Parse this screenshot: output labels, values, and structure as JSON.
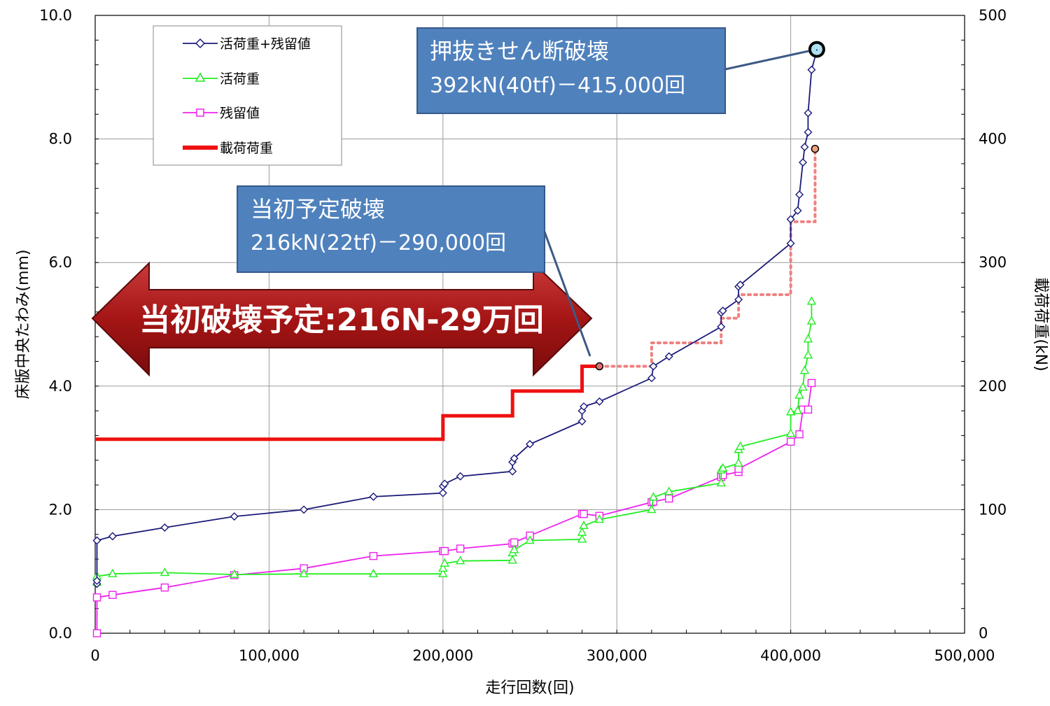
{
  "chart_data": {
    "type": "line",
    "xlabel": "走行回数(回)",
    "ylabel_left": "床版中央たわみ(mm)",
    "ylabel_right": "載荷荷重(kN)",
    "xlim": [
      0,
      500000
    ],
    "ylim_left": [
      0,
      10
    ],
    "ylim_right": [
      0,
      500
    ],
    "x_ticks": [
      0,
      100000,
      200000,
      300000,
      400000,
      500000
    ],
    "x_tick_labels": [
      "0",
      "100,000",
      "200,000",
      "300,000",
      "400,000",
      "500,000"
    ],
    "y_left_ticks": [
      0,
      2,
      4,
      6,
      8,
      10
    ],
    "y_left_tick_labels": [
      "0.0",
      "2.0",
      "4.0",
      "6.0",
      "8.0",
      "10.0"
    ],
    "y_right_ticks": [
      0,
      100,
      200,
      300,
      400,
      500
    ],
    "y_right_tick_labels": [
      "0",
      "100",
      "200",
      "300",
      "400",
      "500"
    ],
    "grid": true,
    "legend_position": "top-left",
    "series": [
      {
        "name": "活荷重+残留値",
        "axis": "left",
        "marker": "diamond",
        "color": "#1a1a7a",
        "x": [
          1000,
          1000,
          1000,
          10000,
          40000,
          80000,
          120000,
          160000,
          200000,
          200000,
          201000,
          210000,
          240000,
          240000,
          241000,
          250000,
          280000,
          280000,
          281000,
          290000,
          320000,
          321000,
          330000,
          360000,
          360000,
          361000,
          370000,
          370000,
          371000,
          400000,
          400000,
          404000,
          405000,
          407000,
          408000,
          410000,
          410000,
          412000,
          415000
        ],
        "y": [
          0.8,
          0.85,
          1.5,
          1.57,
          1.71,
          1.89,
          2.0,
          2.21,
          2.27,
          2.38,
          2.42,
          2.54,
          2.62,
          2.77,
          2.83,
          3.06,
          3.43,
          3.6,
          3.67,
          3.75,
          4.13,
          4.32,
          4.48,
          4.96,
          5.19,
          5.22,
          5.4,
          5.61,
          5.64,
          6.31,
          6.7,
          6.84,
          7.1,
          7.62,
          7.87,
          8.11,
          8.42,
          9.12,
          9.43
        ]
      },
      {
        "name": "活荷重",
        "axis": "left",
        "marker": "triangle",
        "color": "#22ee22",
        "x": [
          1000,
          1000,
          10000,
          40000,
          80000,
          120000,
          160000,
          200000,
          200000,
          201000,
          210000,
          240000,
          240000,
          241000,
          250000,
          280000,
          280000,
          281000,
          290000,
          320000,
          321000,
          330000,
          360000,
          360000,
          361000,
          370000,
          370000,
          371000,
          400000,
          400000,
          404000,
          405000,
          407000,
          408000,
          410000,
          410000,
          412000,
          412000
        ],
        "y": [
          0.82,
          0.92,
          0.96,
          0.98,
          0.95,
          0.96,
          0.96,
          0.96,
          1.05,
          1.13,
          1.17,
          1.18,
          1.3,
          1.35,
          1.5,
          1.52,
          1.63,
          1.74,
          1.84,
          2.0,
          2.2,
          2.29,
          2.43,
          2.64,
          2.67,
          2.75,
          2.97,
          3.02,
          3.23,
          3.58,
          3.6,
          3.85,
          3.98,
          4.25,
          4.5,
          4.76,
          5.05,
          5.37
        ]
      },
      {
        "name": "残留値",
        "axis": "left",
        "marker": "square",
        "color": "#ee22ee",
        "x": [
          1000,
          1000,
          10000,
          40000,
          80000,
          120000,
          160000,
          200000,
          201000,
          210000,
          240000,
          241000,
          250000,
          280000,
          281000,
          290000,
          320000,
          321000,
          330000,
          360000,
          361000,
          370000,
          370000,
          400000,
          405000,
          407000,
          410000,
          412000
        ],
        "y": [
          0.0,
          0.58,
          0.62,
          0.74,
          0.94,
          1.05,
          1.25,
          1.33,
          1.33,
          1.37,
          1.45,
          1.47,
          1.58,
          1.93,
          1.93,
          1.9,
          2.12,
          2.13,
          2.18,
          2.53,
          2.56,
          2.61,
          2.66,
          3.1,
          3.22,
          3.62,
          3.62,
          4.05
        ]
      },
      {
        "name": "載荷荷重",
        "axis": "right",
        "style": "step",
        "color": "#ee1111",
        "x": [
          0,
          200000,
          200000,
          240000,
          240000,
          280000,
          280000,
          290000
        ],
        "y": [
          157,
          157,
          176,
          176,
          196,
          196,
          216,
          216
        ]
      },
      {
        "name": "",
        "axis": "right",
        "style": "dotted",
        "color": "#f08080",
        "x": [
          290000,
          320000,
          320000,
          360000,
          360000,
          370000,
          370000,
          400000,
          400000,
          414000,
          414000
        ],
        "y": [
          216,
          216,
          235,
          235,
          255,
          255,
          274,
          274,
          333,
          333,
          392
        ]
      }
    ],
    "annotations": [
      {
        "title": "押抜きせん断破壊",
        "text": "392kN(40tf)－415,000回",
        "x": 415000,
        "y": 9.45
      },
      {
        "title": "当初予定破壊",
        "text": "216kN(22tf)－290,000回",
        "x": 290000,
        "y": 216
      },
      {
        "text": "当初破壊予定:216N-29万回"
      }
    ]
  }
}
